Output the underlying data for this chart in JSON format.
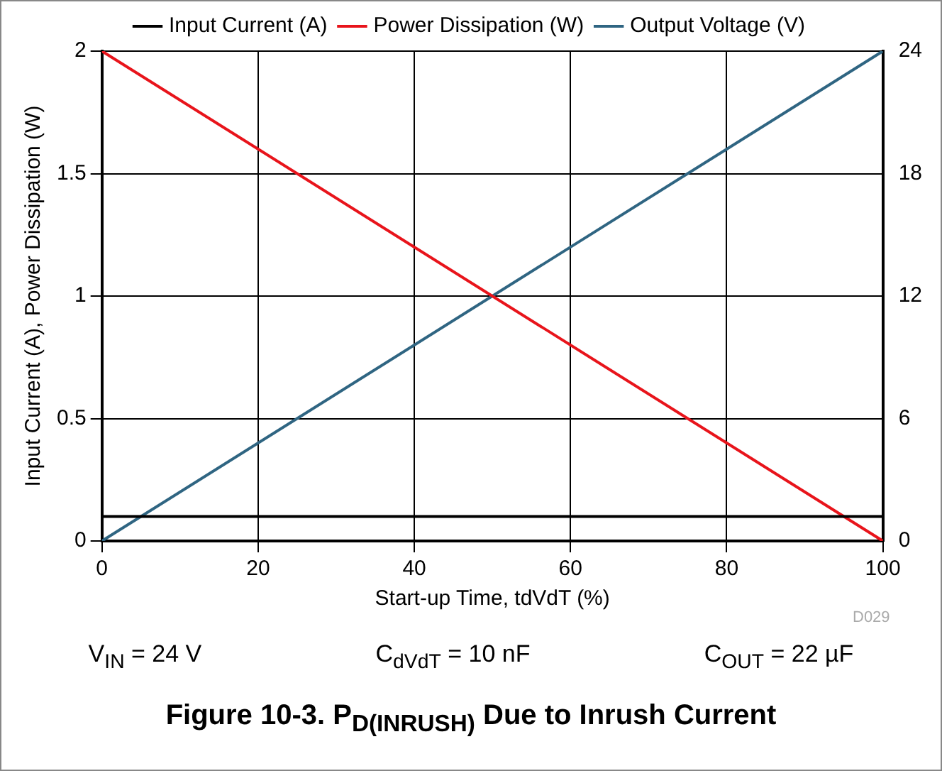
{
  "chart_data": {
    "type": "line",
    "title": "Figure 10-3. P$_{D(INRUSH)}$ Due to Inrush Current",
    "xlabel": "Start-up Time, tdVdT (%)",
    "ylabel": "Input Current (A), Power Dissipation (W)",
    "x": [
      0,
      100
    ],
    "xlim": [
      0,
      100
    ],
    "xticks": [
      0,
      20,
      40,
      60,
      80,
      100
    ],
    "ylim": [
      0,
      2
    ],
    "yticks": [
      0,
      0.5,
      1,
      1.5,
      2
    ],
    "y2lim": [
      0,
      24
    ],
    "y2ticks": [
      0,
      6,
      12,
      18,
      24
    ],
    "series": [
      {
        "name": "Input Current (A)",
        "color": "#000000",
        "values": [
          0.1,
          0.1
        ]
      },
      {
        "name": "Power Dissipation (W)",
        "color": "#e8141b",
        "values": [
          2,
          0
        ]
      },
      {
        "name": "Output Voltage (V)",
        "color": "#2f6582",
        "values": [
          0,
          24
        ],
        "axis": "y2"
      }
    ],
    "annotations": [
      "D029",
      "V$_{IN}$ = 24 V",
      "C$_{dVdT}$ = 10 nF",
      "C$_{OUT}$ = 22 µF"
    ],
    "grid": true,
    "legend": "top",
    "marker": "none",
    "line_style": "solid"
  }
}
